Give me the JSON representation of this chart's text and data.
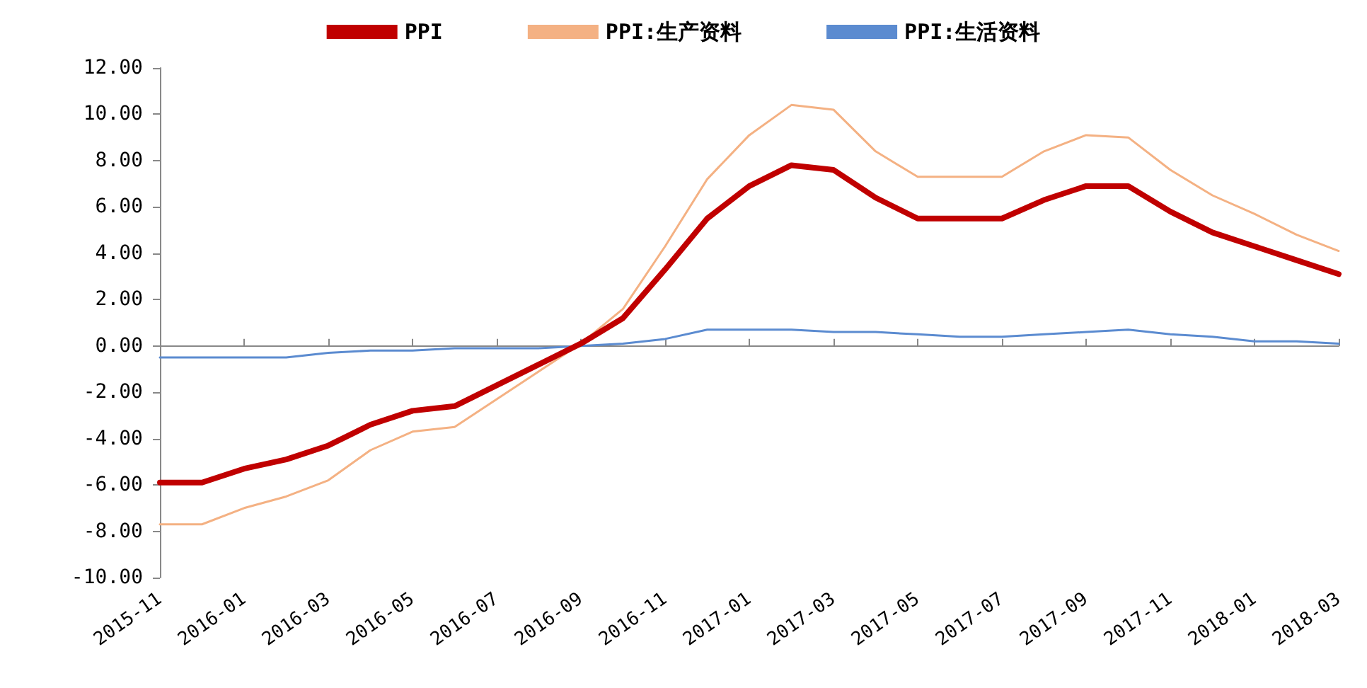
{
  "chart_data": {
    "type": "line",
    "categories": [
      "2015-11",
      null,
      "2016-01",
      null,
      "2016-03",
      null,
      "2016-05",
      null,
      "2016-07",
      null,
      "2016-09",
      null,
      "2016-11",
      null,
      "2017-01",
      null,
      "2017-03",
      null,
      "2017-05",
      null,
      "2017-07",
      null,
      "2017-09",
      null,
      "2017-11",
      null,
      "2018-01",
      null,
      "2018-03"
    ],
    "series": [
      {
        "name": "PPI",
        "color": "#c00000",
        "values": [
          -5.9,
          -5.9,
          -5.3,
          -4.9,
          -4.3,
          -3.4,
          -2.8,
          -2.6,
          -1.7,
          -0.8,
          0.1,
          1.2,
          3.3,
          5.5,
          6.9,
          7.8,
          7.6,
          6.4,
          5.5,
          5.5,
          5.5,
          6.3,
          6.9,
          6.9,
          5.8,
          4.9,
          4.3,
          3.7,
          3.1
        ]
      },
      {
        "name": "PPI:生产资料",
        "color": "#f4b183",
        "values": [
          -7.7,
          -7.7,
          -7.0,
          -6.5,
          -5.8,
          -4.5,
          -3.7,
          -3.5,
          -2.3,
          -1.1,
          0.1,
          1.6,
          4.3,
          7.2,
          9.1,
          10.4,
          10.2,
          8.4,
          7.3,
          7.3,
          7.3,
          8.4,
          9.1,
          9.0,
          7.6,
          6.5,
          5.7,
          4.8,
          4.1
        ]
      },
      {
        "name": "PPI:生活资料",
        "color": "#5b8bd0",
        "values": [
          -0.5,
          -0.5,
          -0.5,
          -0.5,
          -0.3,
          -0.2,
          -0.2,
          -0.1,
          -0.1,
          -0.1,
          0.0,
          0.1,
          0.3,
          0.7,
          0.7,
          0.7,
          0.6,
          0.6,
          0.5,
          0.4,
          0.4,
          0.5,
          0.6,
          0.7,
          0.5,
          0.4,
          0.2,
          0.2,
          0.1
        ]
      }
    ],
    "ylim": [
      -10,
      12
    ],
    "yticks": [
      {
        "value": -10,
        "label": "-10.00"
      },
      {
        "value": -8,
        "label": "-8.00"
      },
      {
        "value": -6,
        "label": "-6.00"
      },
      {
        "value": -4,
        "label": "-4.00"
      },
      {
        "value": -2,
        "label": "-2.00"
      },
      {
        "value": 0,
        "label": "0.00"
      },
      {
        "value": 2,
        "label": "2.00"
      },
      {
        "value": 4,
        "label": "4.00"
      },
      {
        "value": 6,
        "label": "6.00"
      },
      {
        "value": 8,
        "label": "8.00"
      },
      {
        "value": 10,
        "label": "10.00"
      },
      {
        "value": 12,
        "label": "12.00"
      }
    ],
    "legend": "top",
    "marker": "none",
    "line_style": "solid"
  }
}
